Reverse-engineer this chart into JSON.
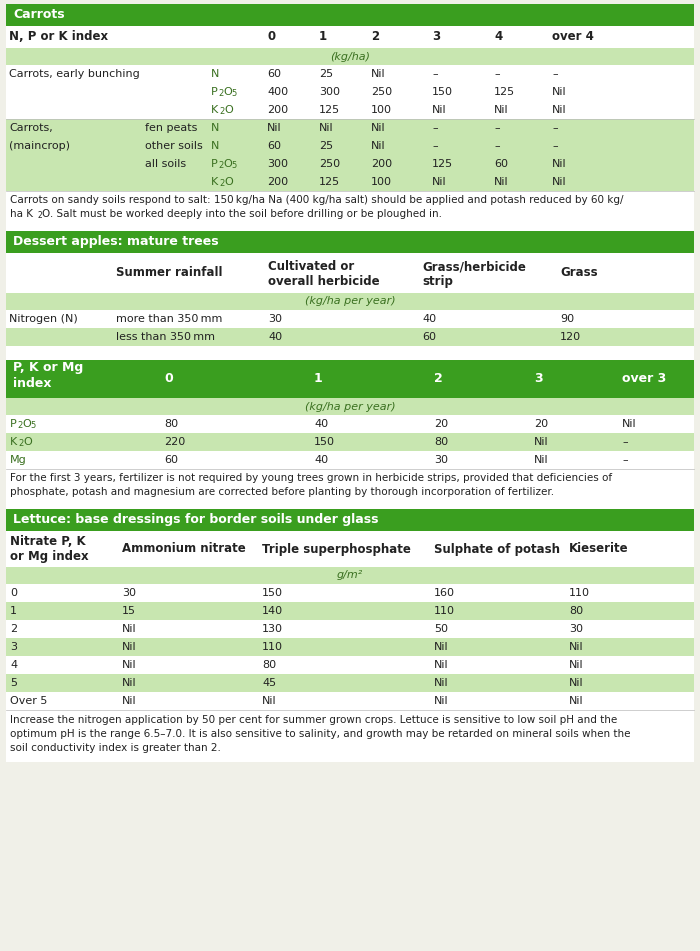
{
  "bg_color": "#f0f0e8",
  "green_header_color": "#3a9e1f",
  "light_green_color": "#c8e6b0",
  "white_color": "#ffffff",
  "text_dark": "#222222",
  "text_green": "#3a7020",
  "carrots_rows": [
    {
      "label": "Carrots, early bunching",
      "sub": "",
      "chem": "N",
      "vals": [
        "60",
        "25",
        "Nil",
        "–",
        "–",
        "–"
      ],
      "bg": "#ffffff"
    },
    {
      "label": "",
      "sub": "",
      "chem": "P2O5",
      "vals": [
        "400",
        "300",
        "250",
        "150",
        "125",
        "Nil"
      ],
      "bg": "#ffffff"
    },
    {
      "label": "",
      "sub": "",
      "chem": "K2O",
      "vals": [
        "200",
        "125",
        "100",
        "Nil",
        "Nil",
        "Nil"
      ],
      "bg": "#ffffff"
    },
    {
      "label": "Carrots,",
      "sub": "fen peats",
      "chem": "N",
      "vals": [
        "Nil",
        "Nil",
        "Nil",
        "–",
        "–",
        "–"
      ],
      "bg": "#c8e6b0"
    },
    {
      "label": "(maincrop)",
      "sub": "other soils",
      "chem": "N",
      "vals": [
        "60",
        "25",
        "Nil",
        "–",
        "–",
        "–"
      ],
      "bg": "#c8e6b0"
    },
    {
      "label": "",
      "sub": "all soils",
      "chem": "P2O5",
      "vals": [
        "300",
        "250",
        "200",
        "125",
        "60",
        "Nil"
      ],
      "bg": "#c8e6b0"
    },
    {
      "label": "",
      "sub": "",
      "chem": "K2O",
      "vals": [
        "200",
        "125",
        "100",
        "Nil",
        "Nil",
        "Nil"
      ],
      "bg": "#c8e6b0"
    }
  ],
  "apple_rows": [
    {
      "label": "Nitrogen (N)",
      "sub": "more than 350 mm",
      "vals": [
        "30",
        "40",
        "90"
      ],
      "bg": "#ffffff"
    },
    {
      "label": "",
      "sub": "less than 350 mm",
      "vals": [
        "40",
        "60",
        "120"
      ],
      "bg": "#c8e6b0"
    }
  ],
  "pkMg_rows": [
    {
      "chem": "P2O5",
      "vals": [
        "80",
        "40",
        "20",
        "20",
        "Nil"
      ],
      "bg": "#ffffff"
    },
    {
      "chem": "K2O",
      "vals": [
        "220",
        "150",
        "80",
        "Nil",
        "–"
      ],
      "bg": "#c8e6b0"
    },
    {
      "chem": "Mg",
      "vals": [
        "60",
        "40",
        "30",
        "Nil",
        "–"
      ],
      "bg": "#ffffff"
    }
  ],
  "lettuce_rows": [
    {
      "idx": "0",
      "vals": [
        "30",
        "150",
        "160",
        "110"
      ],
      "bg": "#ffffff"
    },
    {
      "idx": "1",
      "vals": [
        "15",
        "140",
        "110",
        "80"
      ],
      "bg": "#c8e6b0"
    },
    {
      "idx": "2",
      "vals": [
        "Nil",
        "130",
        "50",
        "30"
      ],
      "bg": "#ffffff"
    },
    {
      "idx": "3",
      "vals": [
        "Nil",
        "110",
        "Nil",
        "Nil"
      ],
      "bg": "#c8e6b0"
    },
    {
      "idx": "4",
      "vals": [
        "Nil",
        "80",
        "Nil",
        "Nil"
      ],
      "bg": "#ffffff"
    },
    {
      "idx": "5",
      "vals": [
        "Nil",
        "45",
        "Nil",
        "Nil"
      ],
      "bg": "#c8e6b0"
    },
    {
      "idx": "Over 5",
      "vals": [
        "Nil",
        "Nil",
        "Nil",
        "Nil"
      ],
      "bg": "#ffffff"
    }
  ]
}
